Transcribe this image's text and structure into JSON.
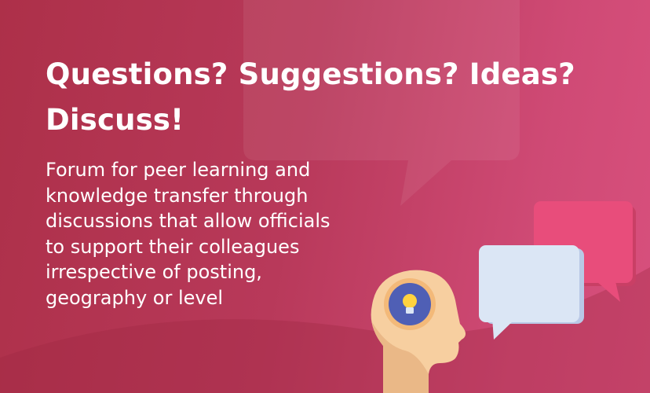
{
  "hero": {
    "title_lines": [
      "Questions? Suggestions? Ideas?",
      "Discuss!"
    ],
    "description_lines": [
      "Forum for peer learning and",
      "knowledge transfer through",
      "discussions that allow officials",
      "to support their colleagues",
      "irrespective of posting,",
      "geography or level"
    ]
  },
  "illustration": {
    "icons": [
      "large-speech-bubble-icon",
      "head-profile-icon",
      "lightbulb-icon",
      "small-speech-bubble-icon",
      "pink-speech-bubble-icon"
    ]
  },
  "colors": {
    "background": "#b2354f",
    "accent_pink": "#e84d7b",
    "bubble_light": "#dbe6f5",
    "head": "#f7cfa0",
    "bulb_circle": "#4f5fb5",
    "bulb": "#ffd23f"
  }
}
